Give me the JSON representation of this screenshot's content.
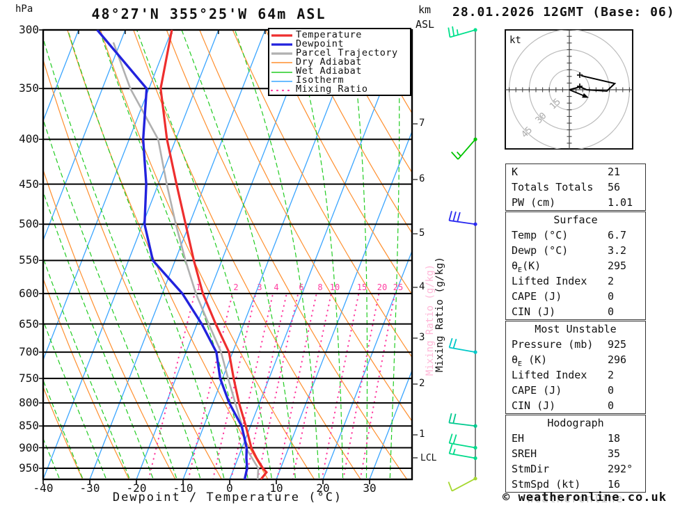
{
  "header": {
    "pressure_unit": "hPa",
    "title": "48°27'N 355°25'W 64m ASL",
    "km_line1": "km",
    "km_line2": "ASL",
    "datetime": "28.01.2026 12GMT (Base: 06)"
  },
  "legend": {
    "items": [
      {
        "label": "Temperature",
        "color": "#ee2e2e",
        "width": 3.2,
        "dash": ""
      },
      {
        "label": "Dewpoint",
        "color": "#2222dd",
        "width": 3.2,
        "dash": ""
      },
      {
        "label": "Parcel Trajectory",
        "color": "#b0b0b0",
        "width": 3.2,
        "dash": ""
      },
      {
        "label": "Dry Adiabat",
        "color": "#ff8f2e",
        "width": 1.4,
        "dash": ""
      },
      {
        "label": "Wet Adiabat",
        "color": "#22cc22",
        "width": 1.4,
        "dash": ""
      },
      {
        "label": "Isotherm",
        "color": "#3aa5ff",
        "width": 1.4,
        "dash": ""
      },
      {
        "label": "Mixing Ratio",
        "color": "#ff3da0",
        "width": 2.2,
        "dash": "1 7"
      }
    ]
  },
  "axes": {
    "xlabel": "Dewpoint / Temperature (°C)",
    "mixing_axis_label": "Mixing Ratio (g/kg)",
    "lcl_label": "LCL"
  },
  "chart_data": {
    "type": "skewt-logp",
    "pressure_axis_hpa": [
      300,
      350,
      400,
      450,
      500,
      550,
      600,
      650,
      700,
      750,
      800,
      850,
      900,
      950
    ],
    "temp_axis_c": [
      -40,
      -30,
      -20,
      -10,
      0,
      10,
      20,
      30
    ],
    "pressure_range_hpa": [
      300,
      978
    ],
    "isotherm_step_c": 10,
    "dry_adiabat_step_c": 10,
    "wet_adiabat_step_c": 5,
    "mixing_ratio_lines_gkg": [
      1,
      2,
      3,
      4,
      5,
      6,
      8,
      10,
      15,
      20,
      25
    ],
    "mixing_ratio_labels_gkg": [
      1,
      2,
      3,
      4,
      6,
      8,
      10,
      15,
      20,
      25
    ],
    "mixing_ratio_label_pressure_hpa": 600,
    "series": {
      "temperature_c": [
        [
          978,
          6.7
        ],
        [
          960,
          7.3
        ],
        [
          950,
          6.2
        ],
        [
          925,
          4.0
        ],
        [
          900,
          2.0
        ],
        [
          850,
          -1.0
        ],
        [
          800,
          -4.4
        ],
        [
          750,
          -7.6
        ],
        [
          700,
          -10.8
        ],
        [
          650,
          -16.0
        ],
        [
          600,
          -21.3
        ],
        [
          550,
          -26.0
        ],
        [
          500,
          -30.8
        ],
        [
          450,
          -36.1
        ],
        [
          400,
          -41.9
        ],
        [
          350,
          -47.5
        ],
        [
          300,
          -50.0
        ]
      ],
      "dewpoint_c": [
        [
          978,
          3.2
        ],
        [
          950,
          2.8
        ],
        [
          925,
          1.8
        ],
        [
          900,
          1.0
        ],
        [
          850,
          -1.9
        ],
        [
          800,
          -6.5
        ],
        [
          750,
          -10.5
        ],
        [
          700,
          -13.5
        ],
        [
          650,
          -19.0
        ],
        [
          600,
          -25.7
        ],
        [
          550,
          -34.8
        ],
        [
          500,
          -39.6
        ],
        [
          450,
          -42.6
        ],
        [
          400,
          -47.0
        ],
        [
          350,
          -50.5
        ],
        [
          300,
          -66.0
        ]
      ],
      "parcel_c": [
        [
          978,
          6.0
        ],
        [
          950,
          5.2
        ],
        [
          900,
          0.8
        ],
        [
          850,
          -1.8
        ],
        [
          800,
          -5.2
        ],
        [
          750,
          -8.8
        ],
        [
          700,
          -12.5
        ],
        [
          650,
          -17.5
        ],
        [
          600,
          -22.8
        ],
        [
          550,
          -27.8
        ],
        [
          500,
          -32.9
        ],
        [
          450,
          -38.2
        ],
        [
          400,
          -43.8
        ],
        [
          350,
          -54.0
        ],
        [
          310,
          -61.5
        ]
      ]
    },
    "lcl": {
      "label": "LCL",
      "pressure_hpa": 925
    },
    "km_ticks": [
      {
        "label": "7",
        "y": 178
      },
      {
        "label": "6",
        "y": 258
      },
      {
        "label": "5",
        "y": 336
      },
      {
        "label": "4",
        "y": 413
      },
      {
        "label": "3",
        "y": 486
      },
      {
        "label": "2",
        "y": 552
      },
      {
        "label": "1",
        "y": 625
      }
    ],
    "lcl_tick_y": 658,
    "wind_barbs": [
      {
        "p": 300,
        "speed_kt": 25,
        "color": "#00e08c",
        "angle": 164
      },
      {
        "p": 400,
        "speed_kt": 15,
        "color": "#00c400",
        "angle": 131
      },
      {
        "p": 500,
        "speed_kt": 30,
        "color": "#2a2af0",
        "angle": 188
      },
      {
        "p": 700,
        "speed_kt": 20,
        "color": "#00c8c8",
        "angle": 190
      },
      {
        "p": 850,
        "speed_kt": 20,
        "color": "#00c98f",
        "angle": 187
      },
      {
        "p": 900,
        "speed_kt": 20,
        "color": "#00da8a",
        "angle": 190
      },
      {
        "p": 925,
        "speed_kt": 15,
        "color": "#00da8a",
        "angle": 190
      },
      {
        "p": 976,
        "speed_kt": 10,
        "color": "#a6d830",
        "angle": 152
      }
    ],
    "hodograph": {
      "unit_label": "kt",
      "rings_kt": [
        15,
        30,
        45
      ],
      "tick_step_kt": 5,
      "trace_kt": [
        [
          9,
          -10.5
        ],
        [
          34,
          -4.7
        ],
        [
          28,
          1
        ],
        [
          13,
          0
        ],
        [
          8,
          -2.2
        ],
        [
          0,
          0
        ]
      ],
      "markers_kt": [
        [
          7.8,
          -11
        ],
        [
          7.8,
          -2.6
        ]
      ],
      "storm_motion_kt": [
        14.5,
        6
      ]
    },
    "colors": {
      "temperature": "#ee2e2e",
      "dewpoint": "#2222dd",
      "parcel": "#b0b0b0",
      "dry_adiabat": "#ff8f2e",
      "wet_adiabat": "#22cc22",
      "isotherm": "#3aa5ff",
      "mixing_ratio": "#ff3da0",
      "grid": "#000000",
      "barb_line": "#666666"
    }
  },
  "info_table": {
    "sections": [
      {
        "header": "",
        "rows": [
          [
            "K",
            "21"
          ],
          [
            "Totals Totals",
            "56"
          ],
          [
            "PW (cm)",
            "1.01"
          ]
        ]
      },
      {
        "header": "Surface",
        "rows": [
          [
            "Temp (°C)",
            "6.7"
          ],
          [
            "Dewp (°C)",
            "3.2"
          ],
          [
            "θ_E(K)",
            "295"
          ],
          [
            "Lifted Index",
            "2"
          ],
          [
            "CAPE (J)",
            "0"
          ],
          [
            "CIN (J)",
            "0"
          ]
        ]
      },
      {
        "header": "Most Unstable",
        "rows": [
          [
            "Pressure (mb)",
            "925"
          ],
          [
            "θ_E (K)",
            "296"
          ],
          [
            "Lifted Index",
            "2"
          ],
          [
            "CAPE (J)",
            "0"
          ],
          [
            "CIN (J)",
            "0"
          ]
        ]
      },
      {
        "header": "Hodograph",
        "rows": [
          [
            "EH",
            "18"
          ],
          [
            "SREH",
            "35"
          ],
          [
            "StmDir",
            "292°"
          ],
          [
            "StmSpd (kt)",
            "16"
          ]
        ]
      }
    ]
  },
  "footer": {
    "copyright": "© weatheronline.co.uk",
    "watermark": "Weatheronline"
  }
}
